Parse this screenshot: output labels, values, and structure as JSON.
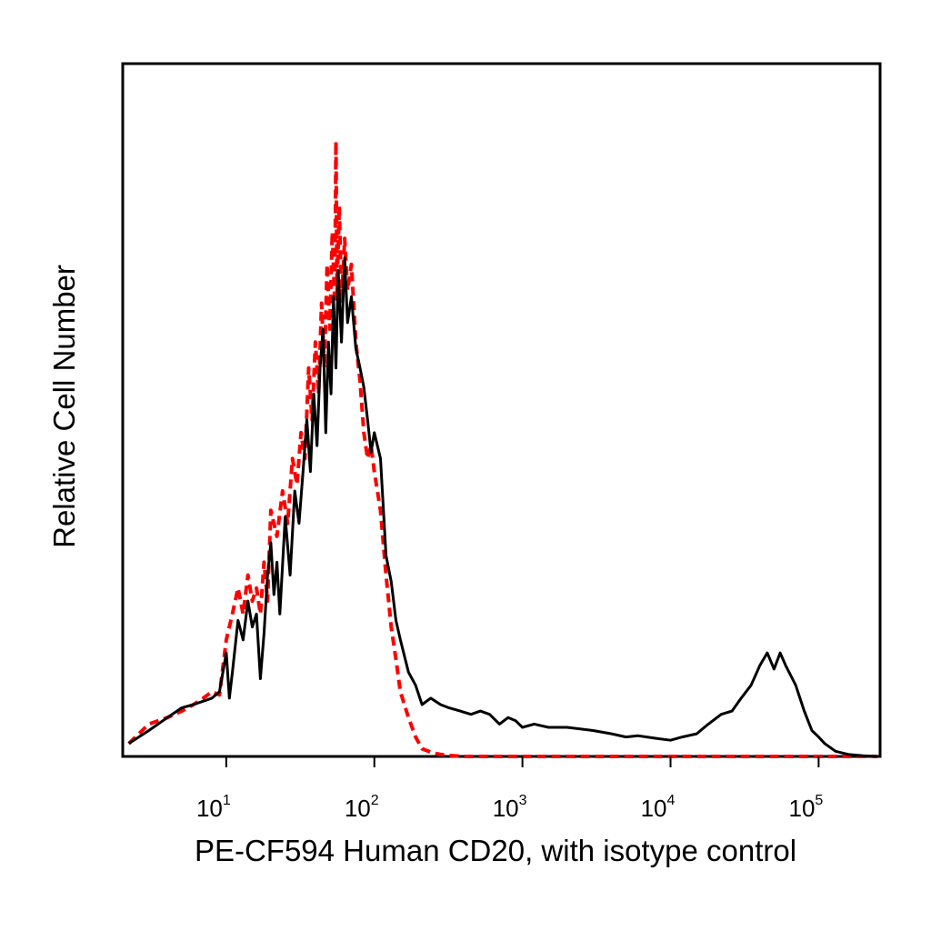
{
  "chart_data": {
    "type": "line",
    "title": "",
    "xlabel": "PE-CF594 Human CD20, with isotype control",
    "ylabel": "Relative Cell Number",
    "xscale": "log",
    "xlim": [
      2,
      260000
    ],
    "ylim": [
      0,
      1
    ],
    "grid": false,
    "legend": "none",
    "x_ticks": [
      {
        "value": 10,
        "base": "10",
        "exp": "1"
      },
      {
        "value": 100,
        "base": "10",
        "exp": "2"
      },
      {
        "value": 1000,
        "base": "10",
        "exp": "3"
      },
      {
        "value": 10000,
        "base": "10",
        "exp": "4"
      },
      {
        "value": 100000,
        "base": "10",
        "exp": "5"
      }
    ],
    "series": [
      {
        "color": "#000000",
        "style": "solid",
        "points": [
          [
            2.2,
            0.02
          ],
          [
            3,
            0.04
          ],
          [
            4,
            0.06
          ],
          [
            5,
            0.075
          ],
          [
            6,
            0.08
          ],
          [
            8,
            0.09
          ],
          [
            9,
            0.1
          ],
          [
            10,
            0.16
          ],
          [
            10.5,
            0.09
          ],
          [
            11,
            0.13
          ],
          [
            12,
            0.21
          ],
          [
            13,
            0.18
          ],
          [
            14,
            0.24
          ],
          [
            15,
            0.2
          ],
          [
            16,
            0.22
          ],
          [
            17,
            0.12
          ],
          [
            18,
            0.19
          ],
          [
            19,
            0.28
          ],
          [
            20,
            0.33
          ],
          [
            21,
            0.25
          ],
          [
            22,
            0.3
          ],
          [
            23,
            0.22
          ],
          [
            25,
            0.37
          ],
          [
            27,
            0.28
          ],
          [
            29,
            0.41
          ],
          [
            31,
            0.36
          ],
          [
            33,
            0.44
          ],
          [
            35,
            0.52
          ],
          [
            37,
            0.44
          ],
          [
            39,
            0.56
          ],
          [
            41,
            0.48
          ],
          [
            43,
            0.6
          ],
          [
            45,
            0.66
          ],
          [
            47,
            0.5
          ],
          [
            49,
            0.64
          ],
          [
            51,
            0.56
          ],
          [
            53,
            0.71
          ],
          [
            55,
            0.6
          ],
          [
            57,
            0.75
          ],
          [
            60,
            0.64
          ],
          [
            63,
            0.77
          ],
          [
            66,
            0.67
          ],
          [
            70,
            0.71
          ],
          [
            75,
            0.63
          ],
          [
            80,
            0.6
          ],
          [
            85,
            0.57
          ],
          [
            90,
            0.52
          ],
          [
            95,
            0.47
          ],
          [
            100,
            0.5
          ],
          [
            110,
            0.46
          ],
          [
            120,
            0.31
          ],
          [
            130,
            0.27
          ],
          [
            140,
            0.21
          ],
          [
            150,
            0.18
          ],
          [
            170,
            0.13
          ],
          [
            190,
            0.11
          ],
          [
            210,
            0.08
          ],
          [
            240,
            0.09
          ],
          [
            280,
            0.08
          ],
          [
            320,
            0.075
          ],
          [
            380,
            0.07
          ],
          [
            450,
            0.065
          ],
          [
            520,
            0.07
          ],
          [
            600,
            0.065
          ],
          [
            700,
            0.05
          ],
          [
            800,
            0.06
          ],
          [
            900,
            0.055
          ],
          [
            1000,
            0.045
          ],
          [
            1200,
            0.05
          ],
          [
            1500,
            0.045
          ],
          [
            2000,
            0.045
          ],
          [
            3000,
            0.04
          ],
          [
            4000,
            0.035
          ],
          [
            5000,
            0.03
          ],
          [
            6000,
            0.032
          ],
          [
            8000,
            0.028
          ],
          [
            10000,
            0.025
          ],
          [
            12000,
            0.03
          ],
          [
            15000,
            0.035
          ],
          [
            18000,
            0.05
          ],
          [
            22000,
            0.065
          ],
          [
            26000,
            0.07
          ],
          [
            30000,
            0.09
          ],
          [
            35000,
            0.11
          ],
          [
            40000,
            0.14
          ],
          [
            45000,
            0.16
          ],
          [
            50000,
            0.135
          ],
          [
            55000,
            0.16
          ],
          [
            60000,
            0.14
          ],
          [
            70000,
            0.11
          ],
          [
            80000,
            0.07
          ],
          [
            90000,
            0.04
          ],
          [
            100000,
            0.03
          ],
          [
            110000,
            0.02
          ],
          [
            130000,
            0.008
          ],
          [
            160000,
            0.003
          ],
          [
            200000,
            0.001
          ],
          [
            250000,
            0.0
          ]
        ]
      },
      {
        "color": "#ff0000",
        "style": "dashed",
        "points": [
          [
            2.2,
            0.02
          ],
          [
            3,
            0.05
          ],
          [
            4,
            0.06
          ],
          [
            5,
            0.07
          ],
          [
            6,
            0.08
          ],
          [
            7,
            0.09
          ],
          [
            8,
            0.1
          ],
          [
            9,
            0.095
          ],
          [
            10,
            0.18
          ],
          [
            11,
            0.22
          ],
          [
            12,
            0.26
          ],
          [
            13,
            0.22
          ],
          [
            14,
            0.28
          ],
          [
            15,
            0.24
          ],
          [
            16,
            0.26
          ],
          [
            17,
            0.22
          ],
          [
            18,
            0.3
          ],
          [
            19,
            0.24
          ],
          [
            20,
            0.38
          ],
          [
            22,
            0.34
          ],
          [
            24,
            0.41
          ],
          [
            26,
            0.36
          ],
          [
            28,
            0.46
          ],
          [
            30,
            0.42
          ],
          [
            32,
            0.5
          ],
          [
            34,
            0.46
          ],
          [
            36,
            0.6
          ],
          [
            38,
            0.52
          ],
          [
            40,
            0.64
          ],
          [
            42,
            0.56
          ],
          [
            44,
            0.7
          ],
          [
            46,
            0.6
          ],
          [
            48,
            0.76
          ],
          [
            50,
            0.66
          ],
          [
            52,
            0.81
          ],
          [
            54,
            0.7
          ],
          [
            55,
            0.95
          ],
          [
            56,
            0.72
          ],
          [
            58,
            0.85
          ],
          [
            60,
            0.7
          ],
          [
            63,
            0.8
          ],
          [
            66,
            0.72
          ],
          [
            70,
            0.76
          ],
          [
            75,
            0.64
          ],
          [
            80,
            0.58
          ],
          [
            85,
            0.5
          ],
          [
            90,
            0.46
          ],
          [
            95,
            0.48
          ],
          [
            100,
            0.44
          ],
          [
            110,
            0.38
          ],
          [
            120,
            0.28
          ],
          [
            130,
            0.2
          ],
          [
            140,
            0.15
          ],
          [
            150,
            0.1
          ],
          [
            170,
            0.06
          ],
          [
            190,
            0.03
          ],
          [
            210,
            0.012
          ],
          [
            250,
            0.005
          ],
          [
            300,
            0.002
          ],
          [
            400,
            0.0
          ],
          [
            1000,
            0.0
          ],
          [
            10000,
            0.0
          ],
          [
            50000,
            0.0
          ],
          [
            250000,
            0.0
          ]
        ]
      }
    ]
  }
}
